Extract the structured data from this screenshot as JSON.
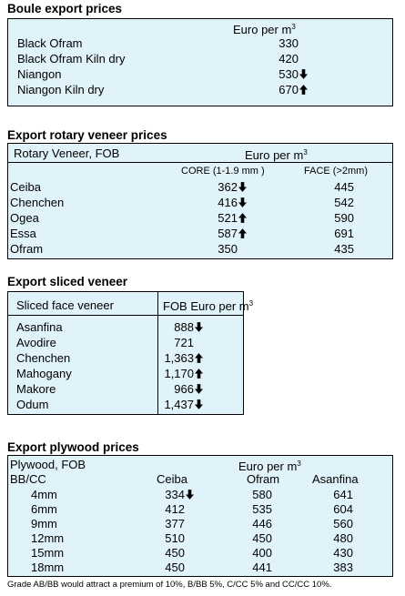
{
  "boule": {
    "title": "Boule export prices",
    "unit_label": "Euro per m",
    "unit_sup": "3",
    "rows": [
      {
        "name": "Black Ofram",
        "value": "330",
        "trend": ""
      },
      {
        "name": "Black Ofram  Kiln dry",
        "value": "420",
        "trend": ""
      },
      {
        "name": "Niangon",
        "value": "530",
        "trend": "down"
      },
      {
        "name": "Niangon Kiln dry",
        "value": "670",
        "trend": "up"
      }
    ]
  },
  "rotary": {
    "title": "Export rotary veneer prices",
    "header_left": "Rotary Veneer,  FOB",
    "unit_label": "Euro  per m",
    "unit_sup": "3",
    "col_core": "CORE (1-1.9 mm )",
    "col_face": "FACE (>2mm)",
    "rows": [
      {
        "name": "Ceiba",
        "core": "362",
        "core_trend": "down",
        "face": "445"
      },
      {
        "name": "Chenchen",
        "core": "416",
        "core_trend": "down",
        "face": "542"
      },
      {
        "name": "Ogea",
        "core": "521",
        "core_trend": "up",
        "face": "590"
      },
      {
        "name": "Essa",
        "core": "587",
        "core_trend": "up",
        "face": "691"
      },
      {
        "name": "Ofram",
        "core": "350",
        "core_trend": "",
        "face": "435"
      }
    ]
  },
  "sliced": {
    "title": "Export sliced veneer",
    "header_left": "Sliced face veneer",
    "header_right": "FOB Euro per m",
    "unit_sup": "3",
    "rows": [
      {
        "name": "Asanfina",
        "value": "888",
        "trend": "down"
      },
      {
        "name": "Avodire",
        "value": "721",
        "trend": ""
      },
      {
        "name": "Chenchen",
        "value": "1,363",
        "trend": "up"
      },
      {
        "name": "Mahogany",
        "value": "1,170",
        "trend": "up"
      },
      {
        "name": "Makore",
        "value": "966",
        "trend": "down"
      },
      {
        "name": "Odum",
        "value": "1,437",
        "trend": "down"
      }
    ]
  },
  "plywood": {
    "title": "Export plywood prices",
    "header_left": "Plywood, FOB",
    "unit_label": "Euro per m",
    "unit_sup": "3",
    "grade": "BB/CC",
    "columns": [
      "Ceiba",
      "Ofram",
      "Asanfina"
    ],
    "rows": [
      {
        "size": "4mm",
        "ceiba": "334",
        "ceiba_trend": "down",
        "ofram": "580",
        "asanfina": "641"
      },
      {
        "size": "6mm",
        "ceiba": "412",
        "ceiba_trend": "",
        "ofram": "535",
        "asanfina": "604"
      },
      {
        "size": "9mm",
        "ceiba": "377",
        "ceiba_trend": "",
        "ofram": "446",
        "asanfina": "560"
      },
      {
        "size": "12mm",
        "ceiba": "510",
        "ceiba_trend": "",
        "ofram": "450",
        "asanfina": "480"
      },
      {
        "size": "15mm",
        "ceiba": "450",
        "ceiba_trend": "",
        "ofram": "400",
        "asanfina": "430"
      },
      {
        "size": "18mm",
        "ceiba": "450",
        "ceiba_trend": "",
        "ofram": "441",
        "asanfina": "383"
      }
    ],
    "footnote": "Grade AB/BB would attract a premium of 10%, B/BB 5%, C/CC 5% and CC/CC 10%."
  },
  "colors": {
    "box_fill": "#e1f3fa",
    "border": "#000000"
  }
}
